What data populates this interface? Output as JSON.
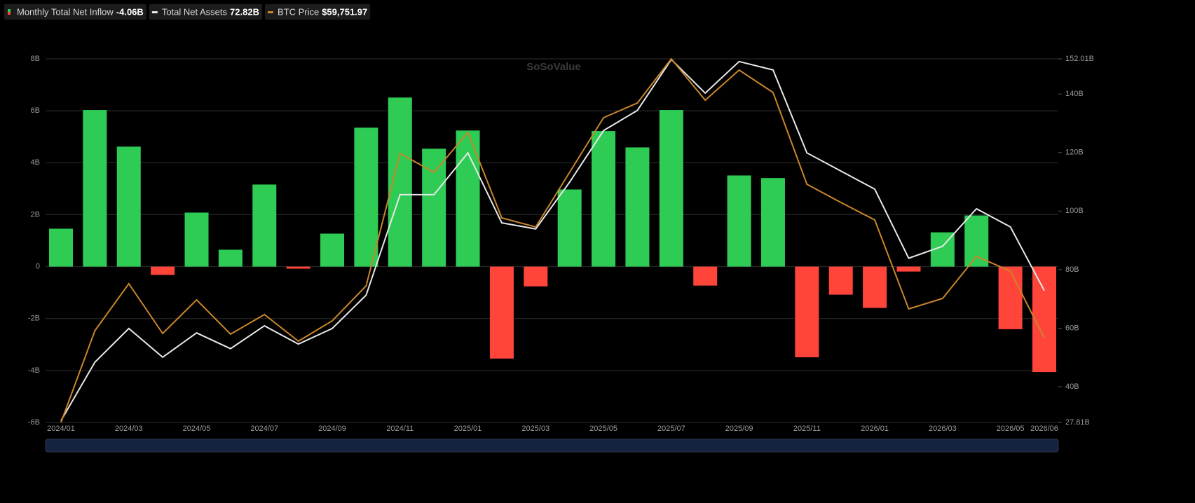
{
  "chart_data": {
    "type": "bar-line",
    "watermark": "SoSoValue",
    "categories": [
      "2024/01",
      null,
      "2024/03",
      null,
      "2024/05",
      null,
      "2024/07",
      null,
      "2024/09",
      null,
      "2024/11",
      null,
      "2025/01",
      null,
      "2025/03",
      null,
      "2025/05",
      null,
      "2025/07",
      null,
      "2025/09",
      null,
      "2025/11",
      null,
      "2026/01",
      null,
      "2026/03",
      null,
      "2026/05",
      "2026/06"
    ],
    "ylim": [
      -6,
      8
    ],
    "yticks": [
      {
        "value": 8,
        "label": "8B"
      },
      {
        "value": 6,
        "label": "6B"
      },
      {
        "value": 4,
        "label": "4B"
      },
      {
        "value": 2,
        "label": "2B"
      },
      0,
      {
        "value": -2,
        "label": "-2B"
      },
      {
        "value": -4,
        "label": "-4B"
      },
      {
        "value": -6,
        "label": "-6B"
      }
    ],
    "y2lim": [
      27.81,
      152.01
    ],
    "y2ticks": [
      {
        "value": 152.01,
        "label": "152.01B"
      },
      {
        "value": 140,
        "label": "140B"
      },
      {
        "value": 120,
        "label": "120B"
      },
      {
        "value": 100,
        "label": "100B"
      },
      {
        "value": 80,
        "label": "80B"
      },
      {
        "value": 60,
        "label": "60B"
      },
      {
        "value": 40,
        "label": "40B"
      },
      {
        "value": 27.81,
        "label": "27.81B"
      }
    ],
    "y3lim": [
      40000,
      125000
    ],
    "grid": true,
    "series": [
      {
        "name": "Monthly Total Net Inflow",
        "legend_value": "-4.06B",
        "kind": "bar",
        "axis": "y",
        "color": "#2ecc55",
        "negative_color": "#ff453a",
        "values": [
          1.46,
          6.03,
          4.62,
          -0.32,
          2.08,
          0.65,
          3.16,
          -0.08,
          1.27,
          5.35,
          6.51,
          4.54,
          5.24,
          -3.54,
          -0.76,
          2.97,
          5.22,
          4.59,
          6.03,
          -0.73,
          3.51,
          3.41,
          -3.49,
          -1.08,
          -1.59,
          -0.19,
          1.32,
          1.97,
          -2.41,
          -4.06
        ]
      },
      {
        "name": "Total Net Assets",
        "legend_value": "72.82B",
        "kind": "line",
        "axis": "y2",
        "color": "#e8e8e8",
        "values": [
          28.4,
          48.4,
          59.9,
          50.1,
          58.4,
          53.0,
          60.8,
          54.6,
          59.9,
          71.3,
          105.6,
          105.6,
          119.9,
          96.0,
          93.9,
          109.9,
          127.5,
          134.4,
          151.8,
          140.3,
          151.1,
          148.2,
          119.9,
          113.7,
          107.5,
          83.9,
          88.0,
          100.8,
          94.6,
          72.82
        ]
      },
      {
        "name": "BTC Price",
        "legend_value": "$59,751.97",
        "kind": "line",
        "axis": "y3",
        "color": "#c9862a",
        "values": [
          40000,
          61450,
          72430,
          60800,
          68660,
          60640,
          65220,
          59000,
          63750,
          71940,
          102890,
          98470,
          107800,
          87820,
          85690,
          98470,
          111240,
          114680,
          125000,
          115340,
          122380,
          117140,
          95680,
          91420,
          87330,
          66530,
          68990,
          78810,
          75380,
          59751.97
        ]
      }
    ]
  }
}
